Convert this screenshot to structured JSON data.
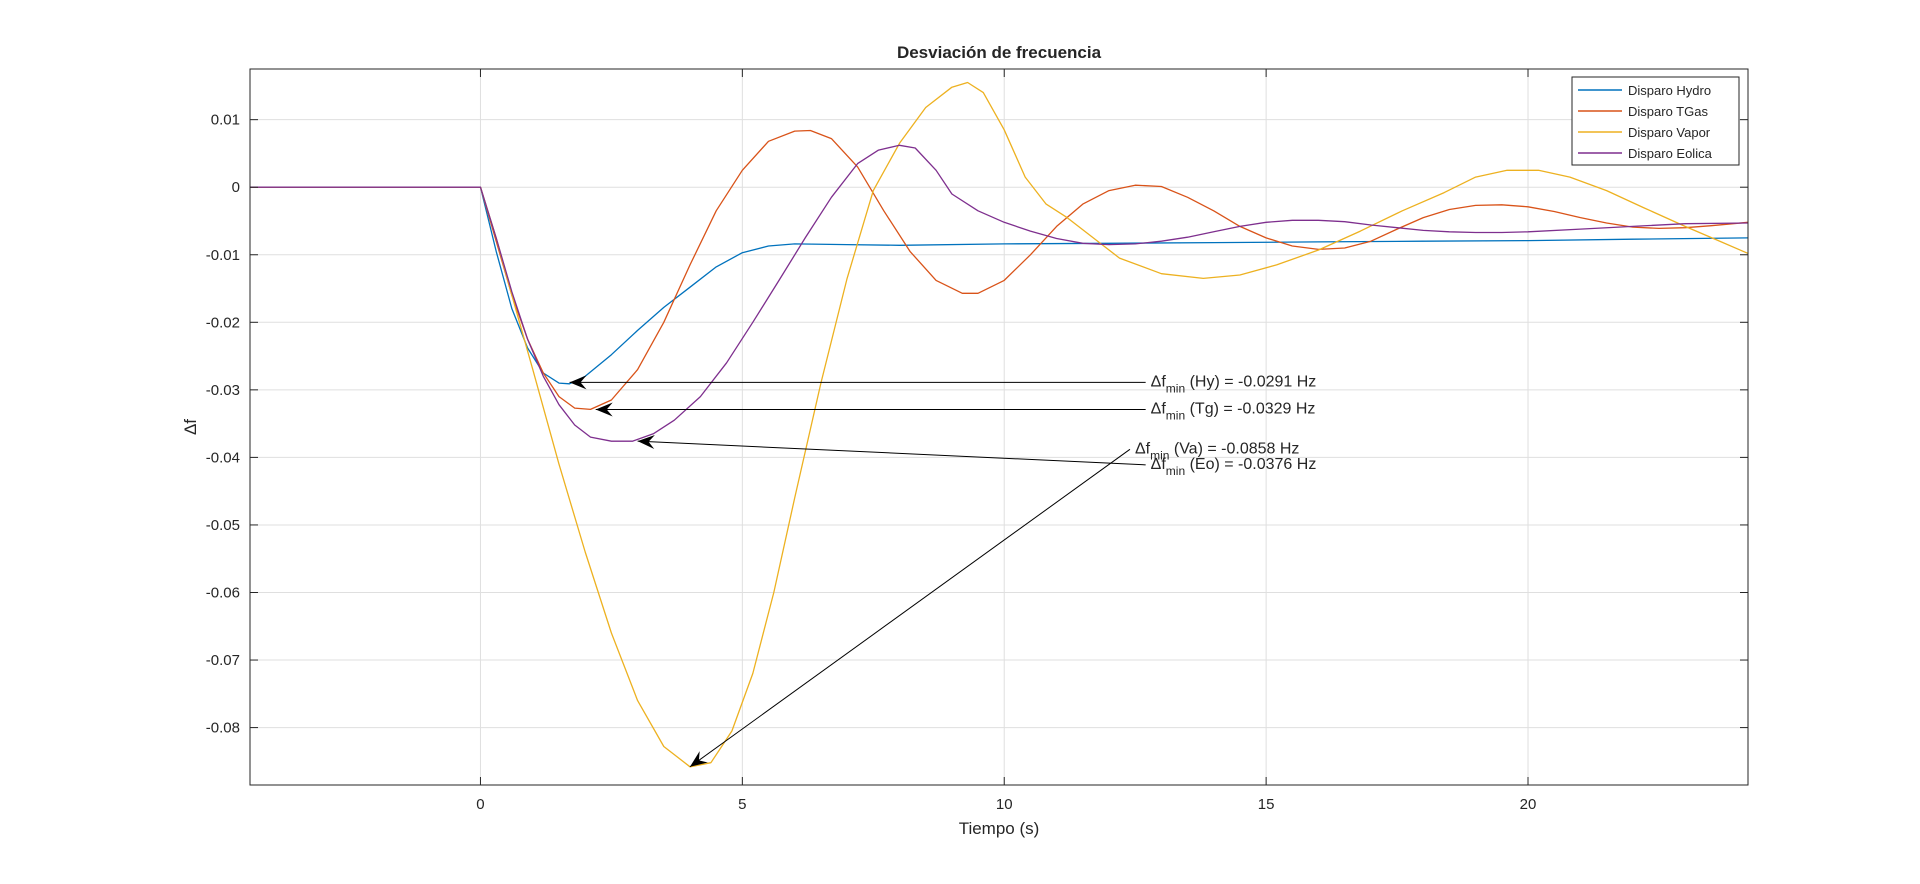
{
  "chart_data": {
    "type": "line",
    "title": "Desviación de frecuencia",
    "xlabel": "Tiempo (s)",
    "ylabel": "Δf",
    "xlim": [
      -4.4,
      24.2
    ],
    "ylim": [
      -0.0885,
      0.0175
    ],
    "xticks": [
      0,
      5,
      10,
      15,
      20
    ],
    "yticks": [
      0.01,
      0,
      -0.01,
      -0.02,
      -0.03,
      -0.04,
      -0.05,
      -0.06,
      -0.07,
      -0.08
    ],
    "ytick_labels": [
      "0.01",
      "0",
      "-0.01",
      "-0.02",
      "-0.03",
      "-0.04",
      "-0.05",
      "-0.06",
      "-0.07",
      "-0.08"
    ],
    "grid": true,
    "legend_position": "top-right",
    "series": [
      {
        "name": "Disparo Hydro",
        "color": "#0072BD",
        "points": [
          [
            -4.4,
            0
          ],
          [
            0,
            0
          ],
          [
            0.3,
            -0.0095
          ],
          [
            0.6,
            -0.018
          ],
          [
            0.9,
            -0.0238
          ],
          [
            1.2,
            -0.0275
          ],
          [
            1.5,
            -0.029
          ],
          [
            1.7,
            -0.0291
          ],
          [
            2.0,
            -0.028
          ],
          [
            2.5,
            -0.0248
          ],
          [
            3.0,
            -0.0212
          ],
          [
            3.5,
            -0.0178
          ],
          [
            4.0,
            -0.0148
          ],
          [
            4.5,
            -0.0118
          ],
          [
            5.0,
            -0.0097
          ],
          [
            5.5,
            -0.0087
          ],
          [
            6.0,
            -0.0084
          ],
          [
            7.0,
            -0.0085
          ],
          [
            8.0,
            -0.0086
          ],
          [
            10,
            -0.0084
          ],
          [
            12,
            -0.0083
          ],
          [
            14,
            -0.0082
          ],
          [
            16,
            -0.0081
          ],
          [
            18,
            -0.008
          ],
          [
            20,
            -0.0079
          ],
          [
            22,
            -0.0077
          ],
          [
            24.2,
            -0.0075
          ]
        ]
      },
      {
        "name": "Disparo TGas",
        "color": "#D95319",
        "points": [
          [
            -4.4,
            0
          ],
          [
            0,
            0
          ],
          [
            0.3,
            -0.008
          ],
          [
            0.6,
            -0.016
          ],
          [
            0.9,
            -0.0225
          ],
          [
            1.2,
            -0.0275
          ],
          [
            1.5,
            -0.031
          ],
          [
            1.8,
            -0.0327
          ],
          [
            2.1,
            -0.0329
          ],
          [
            2.5,
            -0.0315
          ],
          [
            3.0,
            -0.027
          ],
          [
            3.5,
            -0.02
          ],
          [
            4.0,
            -0.0115
          ],
          [
            4.5,
            -0.0035
          ],
          [
            5.0,
            0.0025
          ],
          [
            5.5,
            0.0068
          ],
          [
            6.0,
            0.0083
          ],
          [
            6.3,
            0.0084
          ],
          [
            6.7,
            0.0072
          ],
          [
            7.2,
            0.003
          ],
          [
            7.7,
            -0.0035
          ],
          [
            8.2,
            -0.0095
          ],
          [
            8.7,
            -0.0138
          ],
          [
            9.2,
            -0.0157
          ],
          [
            9.5,
            -0.0157
          ],
          [
            10.0,
            -0.0138
          ],
          [
            10.5,
            -0.01
          ],
          [
            11.0,
            -0.0058
          ],
          [
            11.5,
            -0.0025
          ],
          [
            12.0,
            -0.0005
          ],
          [
            12.5,
            0.0003
          ],
          [
            13.0,
            0.0001
          ],
          [
            13.5,
            -0.0015
          ],
          [
            14.0,
            -0.0035
          ],
          [
            14.5,
            -0.0058
          ],
          [
            15.0,
            -0.0075
          ],
          [
            15.5,
            -0.0087
          ],
          [
            16.0,
            -0.0092
          ],
          [
            16.5,
            -0.009
          ],
          [
            17.0,
            -0.008
          ],
          [
            17.5,
            -0.0062
          ],
          [
            18.0,
            -0.0045
          ],
          [
            18.5,
            -0.0033
          ],
          [
            19.0,
            -0.0027
          ],
          [
            19.5,
            -0.0026
          ],
          [
            20.0,
            -0.0029
          ],
          [
            20.5,
            -0.0036
          ],
          [
            21.0,
            -0.0045
          ],
          [
            21.5,
            -0.0053
          ],
          [
            22.0,
            -0.0059
          ],
          [
            22.5,
            -0.0061
          ],
          [
            23.0,
            -0.006
          ],
          [
            23.5,
            -0.0057
          ],
          [
            24.2,
            -0.0052
          ]
        ]
      },
      {
        "name": "Disparo Vapor",
        "color": "#EDB120",
        "points": [
          [
            -4.4,
            0
          ],
          [
            0,
            0
          ],
          [
            0.3,
            -0.0075
          ],
          [
            0.6,
            -0.016
          ],
          [
            1.0,
            -0.027
          ],
          [
            1.5,
            -0.041
          ],
          [
            2.0,
            -0.054
          ],
          [
            2.5,
            -0.066
          ],
          [
            3.0,
            -0.076
          ],
          [
            3.5,
            -0.0828
          ],
          [
            4.0,
            -0.0858
          ],
          [
            4.4,
            -0.0852
          ],
          [
            4.8,
            -0.0805
          ],
          [
            5.2,
            -0.072
          ],
          [
            5.6,
            -0.06
          ],
          [
            6.0,
            -0.046
          ],
          [
            6.5,
            -0.029
          ],
          [
            7.0,
            -0.0135
          ],
          [
            7.5,
            -0.0005
          ],
          [
            8.0,
            0.0065
          ],
          [
            8.5,
            0.0118
          ],
          [
            9.0,
            0.0148
          ],
          [
            9.3,
            0.0155
          ],
          [
            9.6,
            0.014
          ],
          [
            10.0,
            0.0085
          ],
          [
            10.4,
            0.0015
          ],
          [
            10.8,
            -0.0025
          ],
          [
            11.2,
            -0.0045
          ],
          [
            11.7,
            -0.0075
          ],
          [
            12.2,
            -0.0105
          ],
          [
            13.0,
            -0.0128
          ],
          [
            13.8,
            -0.0135
          ],
          [
            14.5,
            -0.013
          ],
          [
            15.2,
            -0.0115
          ],
          [
            16.0,
            -0.0093
          ],
          [
            16.8,
            -0.0065
          ],
          [
            17.6,
            -0.0035
          ],
          [
            18.4,
            -0.0008
          ],
          [
            19.0,
            0.0015
          ],
          [
            19.6,
            0.0025
          ],
          [
            20.2,
            0.0025
          ],
          [
            20.8,
            0.0015
          ],
          [
            21.5,
            -0.0005
          ],
          [
            22.2,
            -0.003
          ],
          [
            23.0,
            -0.0058
          ],
          [
            23.6,
            -0.0078
          ],
          [
            24.2,
            -0.0098
          ]
        ]
      },
      {
        "name": "Disparo Eolica",
        "color": "#7E2F8E",
        "points": [
          [
            -4.4,
            0
          ],
          [
            0,
            0
          ],
          [
            0.3,
            -0.0075
          ],
          [
            0.6,
            -0.0155
          ],
          [
            0.9,
            -0.0225
          ],
          [
            1.2,
            -0.028
          ],
          [
            1.5,
            -0.0322
          ],
          [
            1.8,
            -0.0352
          ],
          [
            2.1,
            -0.037
          ],
          [
            2.5,
            -0.0376
          ],
          [
            2.9,
            -0.0376
          ],
          [
            3.3,
            -0.0365
          ],
          [
            3.7,
            -0.0345
          ],
          [
            4.2,
            -0.031
          ],
          [
            4.7,
            -0.026
          ],
          [
            5.2,
            -0.02
          ],
          [
            5.7,
            -0.0138
          ],
          [
            6.2,
            -0.0075
          ],
          [
            6.7,
            -0.0015
          ],
          [
            7.2,
            0.0035
          ],
          [
            7.6,
            0.0055
          ],
          [
            8.0,
            0.0062
          ],
          [
            8.3,
            0.0058
          ],
          [
            8.7,
            0.0025
          ],
          [
            9.0,
            -0.001
          ],
          [
            9.5,
            -0.0035
          ],
          [
            10.0,
            -0.0052
          ],
          [
            10.5,
            -0.0065
          ],
          [
            11.0,
            -0.0076
          ],
          [
            11.5,
            -0.0083
          ],
          [
            12.0,
            -0.0085
          ],
          [
            12.5,
            -0.0084
          ],
          [
            13.0,
            -0.008
          ],
          [
            13.5,
            -0.0074
          ],
          [
            14.0,
            -0.0066
          ],
          [
            14.5,
            -0.0058
          ],
          [
            15.0,
            -0.0052
          ],
          [
            15.5,
            -0.0049
          ],
          [
            16.0,
            -0.0049
          ],
          [
            16.5,
            -0.0051
          ],
          [
            17.0,
            -0.0056
          ],
          [
            17.5,
            -0.006
          ],
          [
            18.0,
            -0.0064
          ],
          [
            18.5,
            -0.0066
          ],
          [
            19.0,
            -0.0067
          ],
          [
            19.5,
            -0.0067
          ],
          [
            20.0,
            -0.0066
          ],
          [
            21.0,
            -0.0062
          ],
          [
            22.0,
            -0.0058
          ],
          [
            23.0,
            -0.0054
          ],
          [
            24.2,
            -0.0053
          ]
        ]
      }
    ],
    "annotations": [
      {
        "base": "Δf",
        "sub": "min",
        "rest": " (Hy) = -0.0291 Hz",
        "tail": [
          12.7,
          -0.0289
        ],
        "head": [
          1.7,
          -0.0289
        ]
      },
      {
        "base": "Δf",
        "sub": "min",
        "rest": " (Tg) = -0.0329 Hz",
        "tail": [
          12.7,
          -0.0329
        ],
        "head": [
          2.2,
          -0.0329
        ]
      },
      {
        "base": "Δf",
        "sub": "min",
        "rest": " (Va) = -0.0858 Hz",
        "tail": [
          12.4,
          -0.0388
        ],
        "head": [
          4.0,
          -0.0858
        ]
      },
      {
        "base": "Δf",
        "sub": "min",
        "rest": " (Eo) = -0.0376 Hz",
        "tail": [
          12.7,
          -0.0411
        ],
        "head": [
          3.0,
          -0.0376
        ]
      }
    ]
  }
}
